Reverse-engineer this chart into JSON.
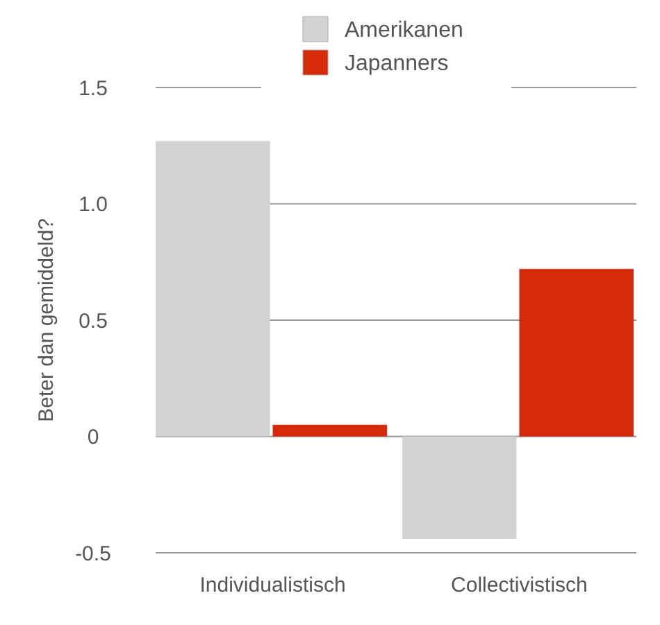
{
  "chart_data": {
    "type": "bar",
    "ylabel": "Beter dan gemiddeld?",
    "categories": [
      "Individualistisch",
      "Collectivistisch"
    ],
    "series": [
      {
        "name": "Amerikanen",
        "color": "#d3d3d3",
        "values": [
          1.27,
          -0.44
        ]
      },
      {
        "name": "Japanners",
        "color": "#d42a0a",
        "values": [
          0.05,
          0.72
        ]
      }
    ],
    "ylim": [
      -0.5,
      1.5
    ],
    "yticks": [
      -0.5,
      0,
      {
        "value": 0.5,
        "label": "0.5"
      },
      {
        "value": 1,
        "label": "1.0"
      },
      1.5
    ],
    "grid": "y",
    "legend": "top"
  }
}
